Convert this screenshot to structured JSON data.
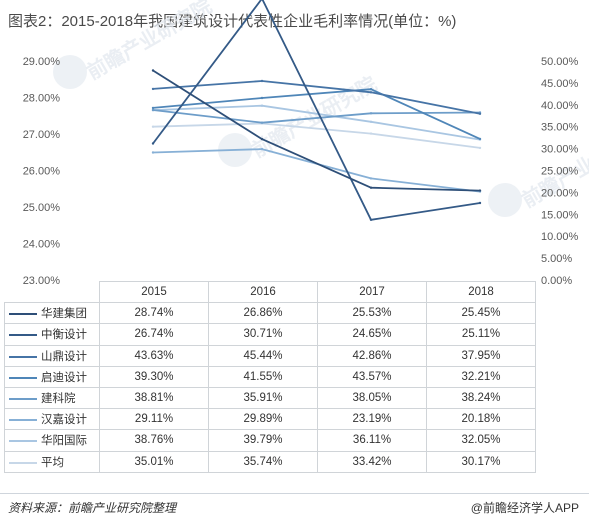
{
  "title": "图表2：2015-2018年我国建筑设计代表性企业毛利率情况(单位：%)",
  "source_label": "资料来源：前瞻产业研究院整理",
  "brand": "@前瞻经济学人APP",
  "watermark": "前瞻产业研究院",
  "colors": {
    "华建集团": "#2e4f78",
    "中衡设计": "#345a87",
    "山鼎设计": "#4674a6",
    "启迪设计": "#4f86b8",
    "建科院": "#6d9dc9",
    "汉嘉设计": "#87b0d6",
    "华阳国际": "#a9c6e2",
    "平均": "#c7d7e8",
    "grid": "#d9dde3",
    "axis_text": "#595959"
  },
  "chart_data": {
    "type": "line",
    "title": "图表2：2015-2018年我国建筑设计代表性企业毛利率情况(单位：%)",
    "categories": [
      "2015",
      "2016",
      "2017",
      "2018"
    ],
    "left_axis": {
      "range": [
        23,
        29
      ],
      "ticks": [
        "29.00%",
        "28.00%",
        "27.00%",
        "26.00%",
        "25.00%",
        "24.00%",
        "23.00%"
      ],
      "series": [
        "华建集团",
        "中衡设计"
      ]
    },
    "right_axis": {
      "range": [
        0,
        50
      ],
      "ticks": [
        "50.00%",
        "45.00%",
        "40.00%",
        "35.00%",
        "30.00%",
        "25.00%",
        "20.00%",
        "15.00%",
        "10.00%",
        "5.00%",
        "0.00%"
      ],
      "series": [
        "山鼎设计",
        "启迪设计",
        "建科院",
        "汉嘉设计",
        "华阳国际",
        "平均"
      ]
    },
    "series": [
      {
        "name": "华建集团",
        "axis": "left",
        "values": [
          28.74,
          26.86,
          25.53,
          25.45
        ],
        "labels": [
          "28.74%",
          "26.86%",
          "25.53%",
          "25.45%"
        ]
      },
      {
        "name": "中衡设计",
        "axis": "left",
        "values": [
          26.74,
          30.71,
          24.65,
          25.11
        ],
        "labels": [
          "26.74%",
          "30.71%",
          "24.65%",
          "25.11%"
        ]
      },
      {
        "name": "山鼎设计",
        "axis": "right",
        "values": [
          43.63,
          45.44,
          42.86,
          37.95
        ],
        "labels": [
          "43.63%",
          "45.44%",
          "42.86%",
          "37.95%"
        ]
      },
      {
        "name": "启迪设计",
        "axis": "right",
        "values": [
          39.3,
          41.55,
          43.57,
          32.21
        ],
        "labels": [
          "39.30%",
          "41.55%",
          "43.57%",
          "32.21%"
        ]
      },
      {
        "name": "建科院",
        "axis": "right",
        "values": [
          38.81,
          35.91,
          38.05,
          38.24
        ],
        "labels": [
          "38.81%",
          "35.91%",
          "38.05%",
          "38.24%"
        ]
      },
      {
        "name": "汉嘉设计",
        "axis": "right",
        "values": [
          29.11,
          29.89,
          23.19,
          20.18
        ],
        "labels": [
          "29.11%",
          "29.89%",
          "23.19%",
          "20.18%"
        ]
      },
      {
        "name": "华阳国际",
        "axis": "right",
        "values": [
          38.76,
          39.79,
          36.11,
          32.05
        ],
        "labels": [
          "38.76%",
          "39.79%",
          "36.11%",
          "32.05%"
        ]
      },
      {
        "name": "平均",
        "axis": "right",
        "values": [
          35.01,
          35.74,
          33.42,
          30.17
        ],
        "labels": [
          "35.01%",
          "35.74%",
          "33.42%",
          "30.17%"
        ]
      }
    ],
    "grid": false,
    "legend": "table-below"
  }
}
